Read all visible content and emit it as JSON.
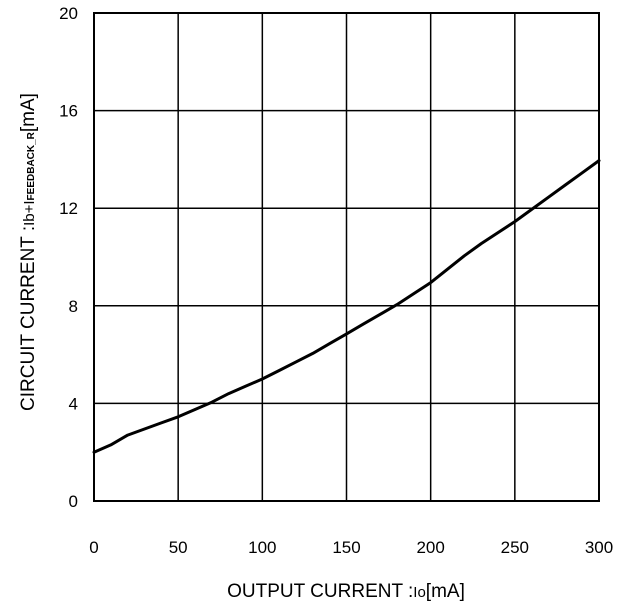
{
  "chart_data": {
    "type": "line",
    "title": "",
    "xlabel": {
      "prefix": "OUTPUT CURRENT  :",
      "symbol": "Io",
      "unit": "[mA]"
    },
    "ylabel": {
      "prefix": "CIRCUIT CURRENT  :",
      "symbol_a": "Ib+I",
      "subscript": "FEEDBACK_R",
      "unit": "[mA]"
    },
    "xlim": [
      0,
      300
    ],
    "ylim": [
      0,
      20
    ],
    "x_ticks": [
      0,
      50,
      100,
      150,
      200,
      250,
      300
    ],
    "y_ticks": [
      0,
      4,
      8,
      12,
      16,
      20
    ],
    "x_tick_labels": [
      "0",
      "50",
      "100",
      "150",
      "200",
      "250",
      "300"
    ],
    "y_tick_labels": [
      "0",
      "4",
      "8",
      "12",
      "16",
      "20"
    ],
    "grid": true,
    "series": [
      {
        "x": [
          0,
          10,
          20,
          30,
          40,
          50,
          60,
          70,
          80,
          90,
          100,
          110,
          120,
          130,
          140,
          150,
          160,
          170,
          180,
          190,
          200,
          210,
          220,
          230,
          240,
          250,
          260,
          270,
          280,
          290,
          300
        ],
        "values": [
          2.0,
          2.3,
          2.7,
          2.95,
          3.2,
          3.45,
          3.75,
          4.05,
          4.4,
          4.7,
          5.0,
          5.35,
          5.7,
          6.05,
          6.45,
          6.85,
          7.25,
          7.65,
          8.05,
          8.5,
          8.95,
          9.5,
          10.05,
          10.55,
          11.0,
          11.45,
          11.95,
          12.45,
          12.95,
          13.45,
          13.95
        ],
        "color": "#000000"
      }
    ]
  }
}
